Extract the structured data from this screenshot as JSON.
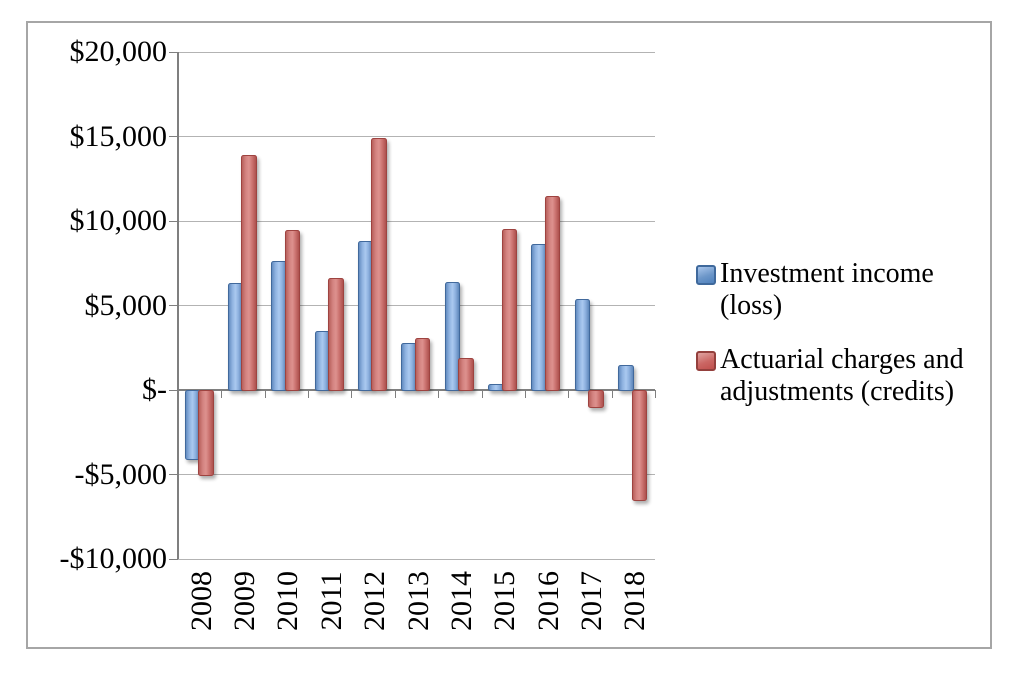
{
  "chart_data": {
    "type": "bar",
    "title": "",
    "categories": [
      "2008",
      "2009",
      "2010",
      "2011",
      "2012",
      "2013",
      "2014",
      "2015",
      "2016",
      "2017",
      "2018"
    ],
    "series": [
      {
        "name": "Investment income (loss)",
        "legend_lines": [
          "Investment income",
          "(loss)"
        ],
        "color": "#4f81bd",
        "values": [
          -4100,
          6350,
          7650,
          3500,
          8800,
          2800,
          6400,
          350,
          8650,
          5400,
          1500
        ]
      },
      {
        "name": "Actuarial charges and adjustments (credits)",
        "legend_lines": [
          "Actuarial charges and",
          "adjustments (credits)"
        ],
        "color": "#c0504d",
        "values": [
          -5000,
          13900,
          9450,
          6600,
          14900,
          3100,
          1900,
          9500,
          11500,
          -1000,
          -6500
        ]
      }
    ],
    "ylim": [
      -10000,
      20000
    ],
    "ytick_step": 5000,
    "ytick_labels": [
      "$20,000",
      "$15,000",
      "$10,000",
      "$5,000",
      "$-",
      "-$5,000",
      "-$10,000"
    ],
    "xlabel": "",
    "ylabel": "",
    "grid": true,
    "legend_position": "right"
  },
  "colors": {
    "grid": "#b3b3b3",
    "axis": "#7f7f7f",
    "frame_border": "#a6a6a6",
    "text": "#000000"
  }
}
